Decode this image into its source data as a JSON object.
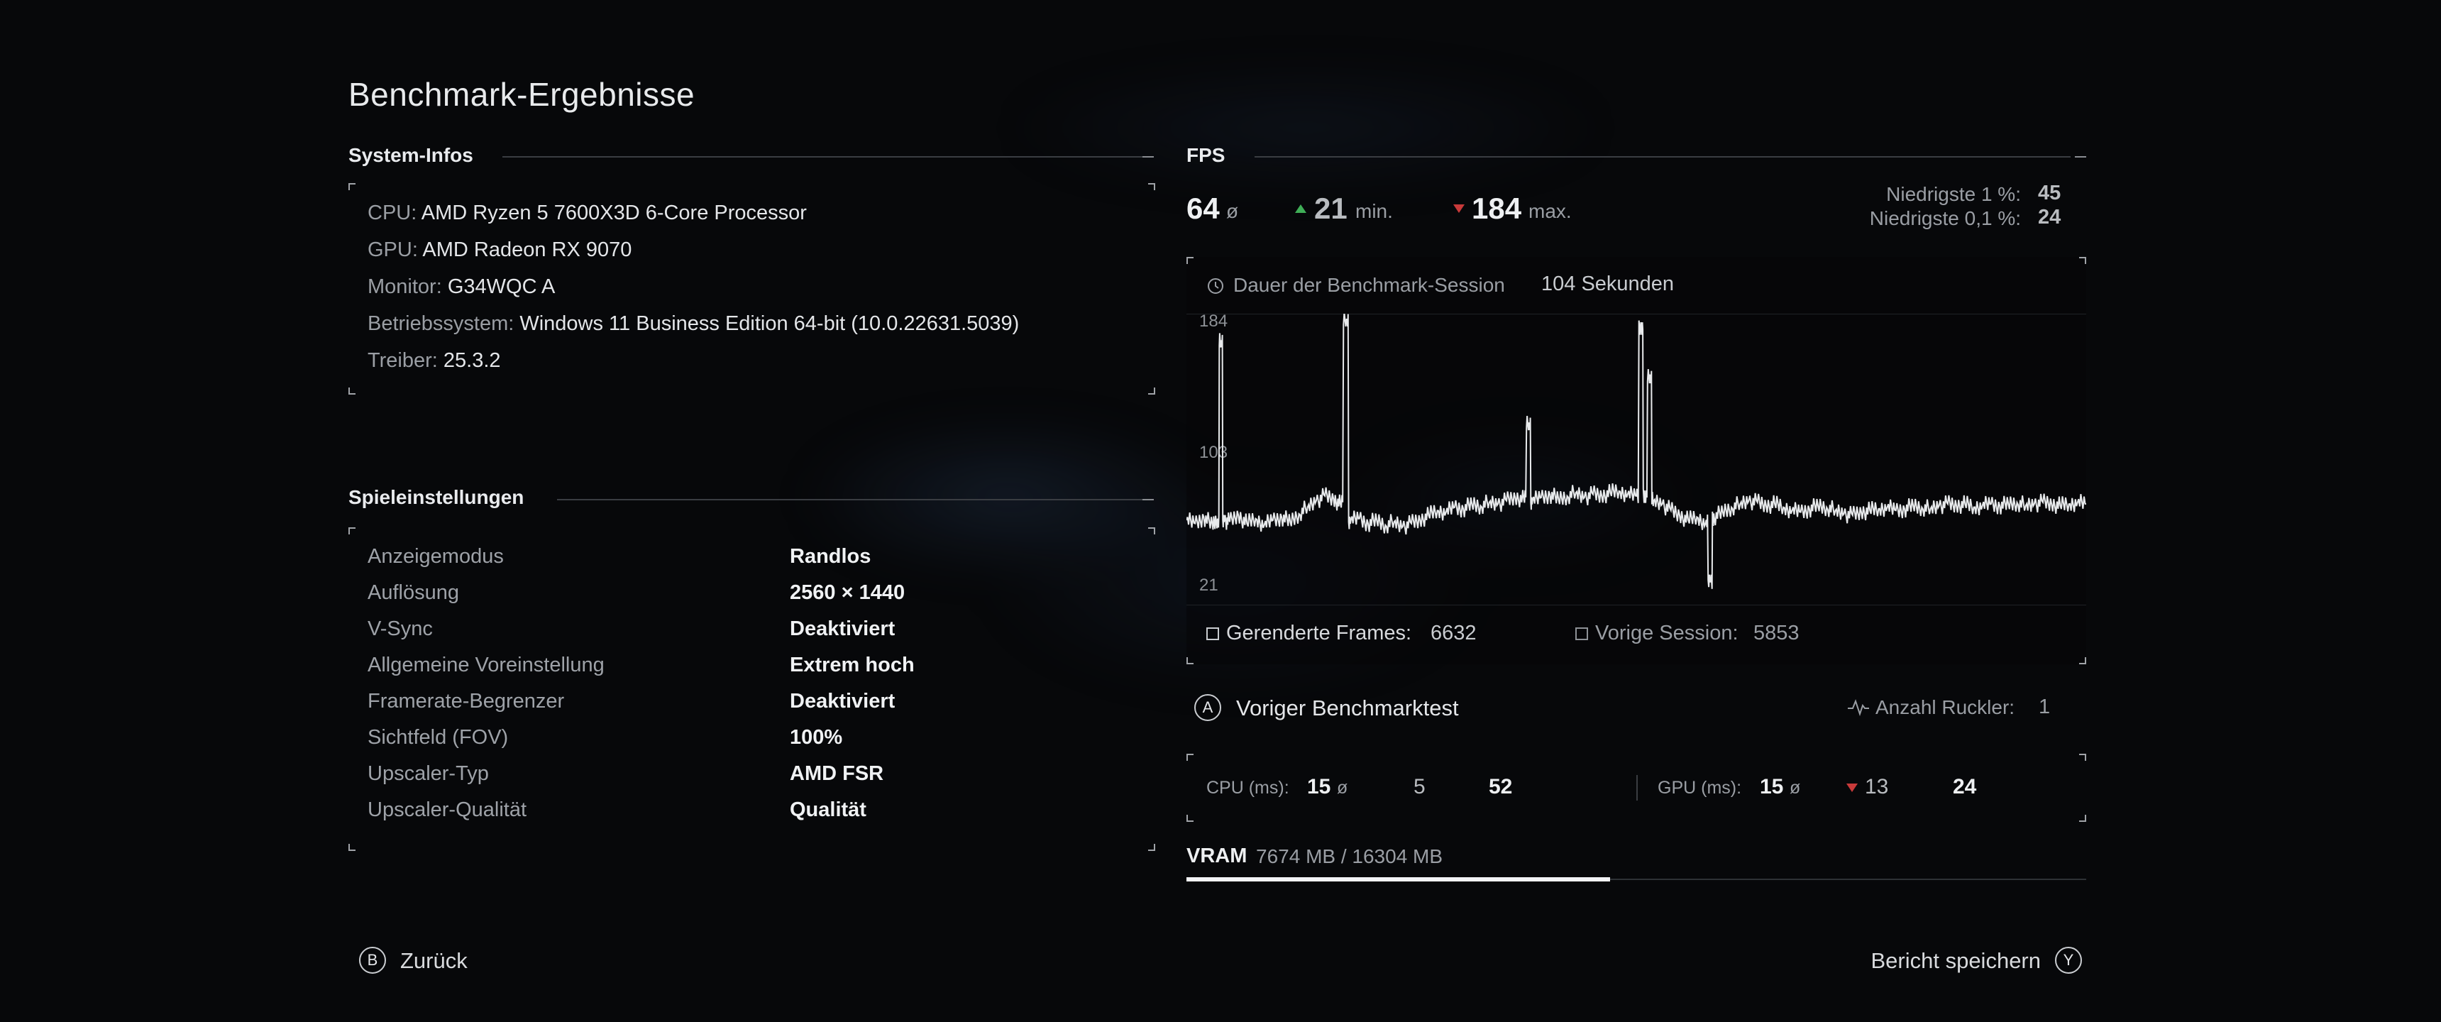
{
  "page": {
    "title": "Benchmark-Ergebnisse"
  },
  "system_info": {
    "title": "System-Infos",
    "items": [
      {
        "label": "CPU:",
        "value": "AMD Ryzen 5 7600X3D 6-Core Processor"
      },
      {
        "label": "GPU:",
        "value": "AMD Radeon RX 9070"
      },
      {
        "label": "Monitor:",
        "value": "G34WQC A"
      },
      {
        "label": "Betriebssystem:",
        "value": "Windows 11 Business Edition 64-bit (10.0.22631.5039)"
      },
      {
        "label": "Treiber:",
        "value": "25.3.2"
      }
    ]
  },
  "game_settings": {
    "title": "Spieleinstellungen",
    "items": [
      {
        "label": "Anzeigemodus",
        "value": "Randlos"
      },
      {
        "label": "Auflösung",
        "value": "2560 × 1440"
      },
      {
        "label": "V-Sync",
        "value": "Deaktiviert"
      },
      {
        "label": "Allgemeine Voreinstellung",
        "value": "Extrem hoch"
      },
      {
        "label": "Framerate-Begrenzer",
        "value": "Deaktiviert"
      },
      {
        "label": "Sichtfeld (FOV)",
        "value": "100%"
      },
      {
        "label": "Upscaler-Typ",
        "value": "AMD FSR"
      },
      {
        "label": "Upscaler-Qualität",
        "value": "Qualität"
      }
    ]
  },
  "fps": {
    "title": "FPS",
    "avg": "64",
    "avg_symbol": "ø",
    "min": "21",
    "min_label": "min.",
    "max": "184",
    "max_label": "max.",
    "low1_label": "Niedrigste 1 %:",
    "low1_value": "45",
    "low01_label": "Niedrigste 0,1 %:",
    "low01_value": "24",
    "session_label": "Dauer der Benchmark-Session",
    "session_value": "104 Sekunden",
    "rendered_label": "Gerenderte Frames:",
    "rendered_value": "6632",
    "previous_label": "Vorige Session:",
    "previous_value": "5853"
  },
  "chart_data": {
    "type": "line",
    "title": "",
    "xlabel": "",
    "ylabel": "",
    "y_ticks": [
      "184",
      "103",
      "21"
    ],
    "ylim": [
      21,
      184
    ],
    "x_range_seconds": [
      0,
      104
    ],
    "series": [
      {
        "points": [
          [
            0,
            60
          ],
          [
            1,
            58
          ],
          [
            2,
            62
          ],
          [
            3,
            57
          ],
          [
            3.6,
            61
          ],
          [
            4,
            170
          ],
          [
            4.4,
            60
          ],
          [
            5,
            59
          ],
          [
            6,
            63
          ],
          [
            7,
            58
          ],
          [
            8,
            61
          ],
          [
            9,
            57
          ],
          [
            10,
            60
          ],
          [
            11,
            62
          ],
          [
            12,
            59
          ],
          [
            13,
            64
          ],
          [
            14,
            68
          ],
          [
            15,
            72
          ],
          [
            16,
            75
          ],
          [
            17,
            73
          ],
          [
            17.8,
            70
          ],
          [
            18.5,
            184
          ],
          [
            19,
            60
          ],
          [
            20,
            61
          ],
          [
            21,
            58
          ],
          [
            22,
            60
          ],
          [
            23,
            57
          ],
          [
            24,
            59
          ],
          [
            25,
            56
          ],
          [
            26,
            58
          ],
          [
            27,
            60
          ],
          [
            28,
            63
          ],
          [
            29,
            66
          ],
          [
            30,
            65
          ],
          [
            31,
            68
          ],
          [
            32,
            67
          ],
          [
            33,
            70
          ],
          [
            34,
            69
          ],
          [
            35,
            71
          ],
          [
            36,
            70
          ],
          [
            37,
            72
          ],
          [
            38,
            74
          ],
          [
            39,
            73
          ],
          [
            39.6,
            120
          ],
          [
            40,
            72
          ],
          [
            41,
            74
          ],
          [
            42,
            76
          ],
          [
            43,
            73
          ],
          [
            44,
            75
          ],
          [
            45,
            77
          ],
          [
            46,
            74
          ],
          [
            47,
            76
          ],
          [
            48,
            75
          ],
          [
            49,
            77
          ],
          [
            50,
            78
          ],
          [
            51,
            76
          ],
          [
            52,
            75
          ],
          [
            52.6,
            180
          ],
          [
            53,
            74
          ],
          [
            53.6,
            150
          ],
          [
            54,
            72
          ],
          [
            55,
            70
          ],
          [
            56,
            66
          ],
          [
            57,
            63
          ],
          [
            58,
            60
          ],
          [
            59,
            62
          ],
          [
            60,
            58
          ],
          [
            60.6,
            22
          ],
          [
            61,
            62
          ],
          [
            62,
            65
          ],
          [
            63,
            68
          ],
          [
            64,
            70
          ],
          [
            65,
            72
          ],
          [
            66,
            71
          ],
          [
            67,
            69
          ],
          [
            68,
            70
          ],
          [
            69,
            68
          ],
          [
            70,
            66
          ],
          [
            71,
            65
          ],
          [
            72,
            67
          ],
          [
            73,
            69
          ],
          [
            74,
            68
          ],
          [
            75,
            66
          ],
          [
            76,
            64
          ],
          [
            77,
            63
          ],
          [
            78,
            65
          ],
          [
            79,
            66
          ],
          [
            80,
            67
          ],
          [
            81,
            68
          ],
          [
            82,
            66
          ],
          [
            83,
            67
          ],
          [
            84,
            69
          ],
          [
            85,
            68
          ],
          [
            86,
            67
          ],
          [
            87,
            69
          ],
          [
            88,
            70
          ],
          [
            89,
            69
          ],
          [
            90,
            70
          ],
          [
            91,
            68
          ],
          [
            92,
            69
          ],
          [
            93,
            70
          ],
          [
            94,
            69
          ],
          [
            95,
            70
          ],
          [
            96,
            71
          ],
          [
            97,
            69
          ],
          [
            98,
            70
          ],
          [
            99,
            71
          ],
          [
            100,
            70
          ],
          [
            101,
            69
          ],
          [
            102,
            70
          ],
          [
            103,
            71
          ],
          [
            104,
            70
          ]
        ]
      }
    ],
    "grid": false
  },
  "previous_benchmark": {
    "button_glyph": "A",
    "label": "Voriger Benchmarktest",
    "stutter_label": "Anzahl Ruckler:",
    "stutter_value": "1"
  },
  "cpu": {
    "label": "CPU (ms):",
    "avg": "15",
    "avg_symbol": "ø",
    "min": "5",
    "max": "52"
  },
  "gpu": {
    "label": "GPU (ms):",
    "avg": "15",
    "avg_symbol": "ø",
    "min": "13",
    "max": "24"
  },
  "vram": {
    "label": "VRAM",
    "value": "7674 MB / 16304 MB",
    "used_fraction": 0.4707
  },
  "footer": {
    "back_glyph": "B",
    "back_label": "Zurück",
    "save_label": "Bericht speichern",
    "save_glyph": "Y"
  },
  "colors": {
    "up": "#3fae57",
    "down": "#c83a3a",
    "line": "#e8eaec"
  },
  "icons": {
    "clock": "clock-icon",
    "stutter": "pulse-icon"
  }
}
